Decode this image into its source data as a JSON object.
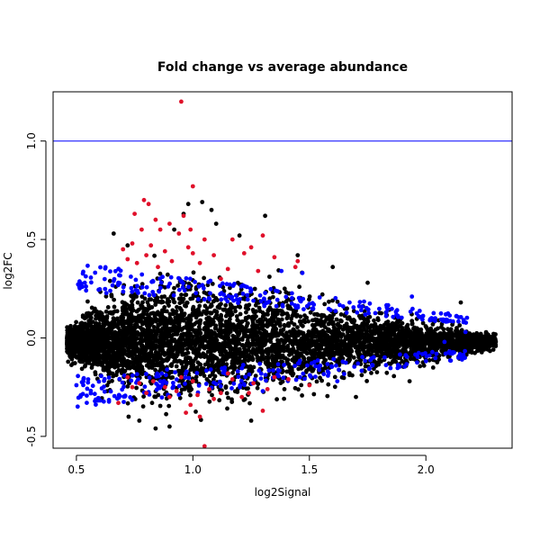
{
  "chart_data": {
    "type": "scatter",
    "title": "Fold change vs average abundance",
    "xlabel": "log2Signal",
    "ylabel": "log2FC",
    "xlim": [
      0.4,
      2.37
    ],
    "ylim": [
      -0.56,
      1.25
    ],
    "x_ticks": [
      0.5,
      1.0,
      1.5,
      2.0
    ],
    "x_tick_labels": [
      "0.5",
      "1.0",
      "1.5",
      "2.0"
    ],
    "y_ticks": [
      -0.5,
      0.0,
      0.5,
      1.0
    ],
    "y_tick_labels": [
      "-0.5",
      "0.0",
      "0.5",
      "1.0"
    ],
    "reference_line": {
      "y": 1.0,
      "color": "#0000ff"
    },
    "grid": false,
    "legend": "none",
    "colors": {
      "background": "#000000",
      "highlight_blue": "#0000ff",
      "highlight_red": "#e0102a"
    },
    "series": [
      {
        "color": "#000000",
        "distribution": {
          "count": 5200,
          "x_range": [
            0.46,
            2.3
          ],
          "y_center": -0.02,
          "y_spread_profile": [
            [
              0.46,
              0.03
            ],
            [
              0.6,
              0.1
            ],
            [
              0.85,
              0.15
            ],
            [
              1.0,
              0.15
            ],
            [
              1.3,
              0.12
            ],
            [
              1.6,
              0.09
            ],
            [
              1.9,
              0.06
            ],
            [
              2.3,
              0.02
            ]
          ]
        },
        "points": [
          [
            0.96,
            0.63
          ],
          [
            0.98,
            0.68
          ],
          [
            1.04,
            0.69
          ],
          [
            1.08,
            0.65
          ],
          [
            1.31,
            0.62
          ],
          [
            0.92,
            0.55
          ],
          [
            0.66,
            0.53
          ],
          [
            0.72,
            0.47
          ],
          [
            1.1,
            0.58
          ],
          [
            1.2,
            0.52
          ],
          [
            1.45,
            0.42
          ],
          [
            1.6,
            0.36
          ],
          [
            1.75,
            0.28
          ],
          [
            2.15,
            0.18
          ],
          [
            2.3,
            -0.02
          ],
          [
            0.84,
            -0.46
          ],
          [
            0.77,
            -0.42
          ],
          [
            1.25,
            -0.42
          ],
          [
            0.9,
            -0.45
          ],
          [
            1.7,
            -0.3
          ],
          [
            1.93,
            -0.22
          ],
          [
            2.15,
            -0.05
          ]
        ]
      },
      {
        "color": "#0000ff",
        "distribution": {
          "count": 460,
          "x_range": [
            0.5,
            2.18
          ],
          "bands": [
            [
              0.2,
              0.32
            ],
            [
              -0.16,
              -0.3
            ]
          ]
        },
        "points": [
          [
            1.94,
            0.21
          ],
          [
            2.08,
            -0.02
          ],
          [
            2.17,
            0.03
          ],
          [
            1.47,
            0.33
          ],
          [
            1.38,
            0.34
          ],
          [
            1.83,
            0.13
          ],
          [
            0.68,
            0.28
          ],
          [
            1.62,
            -0.22
          ],
          [
            1.46,
            -0.2
          ],
          [
            1.3,
            -0.27
          ]
        ]
      },
      {
        "color": "#e0102a",
        "points": [
          [
            0.95,
            1.2
          ],
          [
            1.0,
            0.77
          ],
          [
            0.79,
            0.7
          ],
          [
            0.81,
            0.68
          ],
          [
            0.75,
            0.63
          ],
          [
            0.96,
            0.62
          ],
          [
            0.84,
            0.6
          ],
          [
            0.9,
            0.58
          ],
          [
            0.86,
            0.55
          ],
          [
            0.99,
            0.55
          ],
          [
            0.78,
            0.55
          ],
          [
            0.94,
            0.53
          ],
          [
            1.05,
            0.5
          ],
          [
            1.17,
            0.5
          ],
          [
            1.3,
            0.52
          ],
          [
            0.74,
            0.48
          ],
          [
            0.82,
            0.47
          ],
          [
            1.25,
            0.46
          ],
          [
            0.88,
            0.44
          ],
          [
            0.7,
            0.45
          ],
          [
            1.0,
            0.43
          ],
          [
            1.09,
            0.42
          ],
          [
            1.35,
            0.41
          ],
          [
            1.22,
            0.43
          ],
          [
            0.8,
            0.42
          ],
          [
            0.91,
            0.39
          ],
          [
            0.76,
            0.38
          ],
          [
            0.85,
            0.36
          ],
          [
            1.03,
            0.38
          ],
          [
            1.45,
            0.39
          ],
          [
            1.44,
            0.36
          ],
          [
            1.15,
            0.35
          ],
          [
            1.28,
            0.34
          ],
          [
            0.72,
            0.4
          ],
          [
            0.98,
            0.46
          ],
          [
            1.12,
            0.3
          ],
          [
            1.03,
            -0.4
          ],
          [
            1.05,
            -0.55
          ],
          [
            0.68,
            -0.33
          ],
          [
            1.3,
            -0.37
          ],
          [
            0.99,
            -0.34
          ],
          [
            1.21,
            -0.3
          ],
          [
            1.12,
            -0.28
          ],
          [
            0.93,
            -0.27
          ],
          [
            0.88,
            -0.25
          ],
          [
            1.07,
            -0.26
          ],
          [
            0.77,
            -0.23
          ],
          [
            0.83,
            -0.22
          ],
          [
            1.0,
            -0.22
          ],
          [
            1.17,
            -0.21
          ],
          [
            1.35,
            -0.2
          ],
          [
            0.95,
            -0.2
          ],
          [
            1.26,
            -0.23
          ],
          [
            1.41,
            -0.21
          ],
          [
            1.5,
            -0.24
          ],
          [
            0.72,
            -0.2
          ],
          [
            1.09,
            -0.31
          ],
          [
            0.9,
            -0.3
          ],
          [
            0.8,
            -0.28
          ],
          [
            1.24,
            -0.28
          ],
          [
            1.15,
            -0.18
          ],
          [
            1.32,
            -0.26
          ],
          [
            1.02,
            -0.29
          ],
          [
            0.97,
            -0.38
          ],
          [
            0.74,
            -0.25
          ]
        ]
      }
    ]
  }
}
